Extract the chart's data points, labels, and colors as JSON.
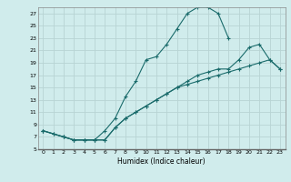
{
  "xlabel": "Humidex (Indice chaleur)",
  "bg_color": "#d0ecec",
  "grid_color": "#b8d4d4",
  "line_color": "#1a6b6b",
  "line1_x": [
    0,
    1,
    2,
    3,
    4,
    5,
    6,
    7,
    8,
    9,
    10,
    11,
    12,
    13,
    14,
    15,
    16,
    17,
    18
  ],
  "line1_y": [
    8,
    7.5,
    7,
    6.5,
    6.5,
    6.5,
    8,
    10,
    13.5,
    16,
    19.5,
    20,
    22,
    24.5,
    27,
    28,
    28,
    27,
    23
  ],
  "line2_x": [
    0,
    1,
    2,
    3,
    4,
    5,
    6,
    7,
    8,
    9,
    10,
    11,
    12,
    13,
    14,
    15,
    16,
    17,
    18,
    19,
    20,
    21,
    22,
    23
  ],
  "line2_y": [
    8,
    7.5,
    7,
    6.5,
    6.5,
    6.5,
    6.5,
    8.5,
    10,
    11,
    12,
    13,
    14,
    15,
    16,
    17,
    17.5,
    18,
    18,
    19.5,
    21.5,
    22,
    19.5,
    18
  ],
  "line3_x": [
    0,
    2,
    3,
    4,
    5,
    6,
    7,
    8,
    9,
    10,
    11,
    12,
    13,
    14,
    15,
    16,
    17,
    18,
    19,
    20,
    21,
    22,
    23
  ],
  "line3_y": [
    8,
    7,
    6.5,
    6.5,
    6.5,
    6.5,
    8.5,
    10,
    11,
    12,
    13,
    14,
    15,
    15.5,
    16,
    16.5,
    17,
    17.5,
    18,
    18.5,
    19,
    19.5,
    18
  ],
  "xlim": [
    -0.5,
    23.5
  ],
  "ylim": [
    5,
    28
  ],
  "yticks": [
    5,
    7,
    9,
    11,
    13,
    15,
    17,
    19,
    21,
    23,
    25,
    27
  ],
  "xticks": [
    0,
    1,
    2,
    3,
    4,
    5,
    6,
    7,
    8,
    9,
    10,
    11,
    12,
    13,
    14,
    15,
    16,
    17,
    18,
    19,
    20,
    21,
    22,
    23
  ]
}
